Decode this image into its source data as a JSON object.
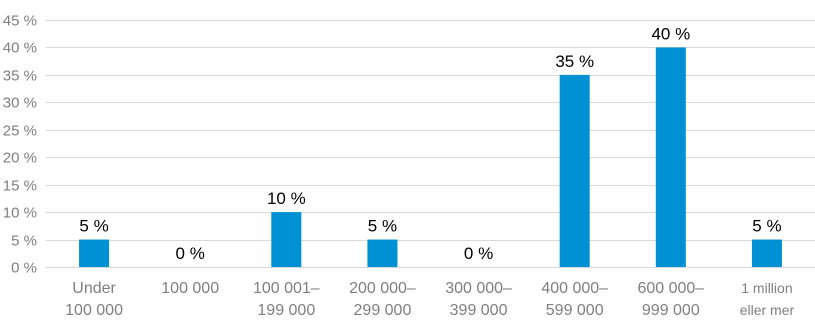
{
  "chart_data": {
    "type": "bar",
    "categories": [
      [
        "Under",
        "100 000"
      ],
      [
        "100 000"
      ],
      [
        "100 001–",
        "199 000"
      ],
      [
        "200 000–",
        "299 000"
      ],
      [
        "300 000–",
        "399 000"
      ],
      [
        "400 000–",
        "599 000"
      ],
      [
        "600 000–",
        "999 000"
      ],
      [
        "1 million",
        "eller mer"
      ]
    ],
    "values": [
      5,
      0,
      10,
      5,
      0,
      35,
      40,
      5
    ],
    "data_labels": [
      "5 %",
      "0 %",
      "10 %",
      "5 %",
      "0 %",
      "35 %",
      "40 %",
      "5 %"
    ],
    "ylim": [
      0,
      45
    ],
    "yticks": [
      0,
      5,
      10,
      15,
      20,
      25,
      30,
      35,
      40,
      45
    ],
    "ytick_labels": [
      "0 %",
      "5 %",
      "10 %",
      "15 %",
      "20 %",
      "25 %",
      "30 %",
      "35 %",
      "40 %",
      "45 %"
    ],
    "grid": true,
    "legend": "none",
    "colors": {
      "bar": "#0090d4",
      "grid": "#d9d9d9",
      "tick_text": "#7f7f7f",
      "label_text": "#000000"
    }
  }
}
